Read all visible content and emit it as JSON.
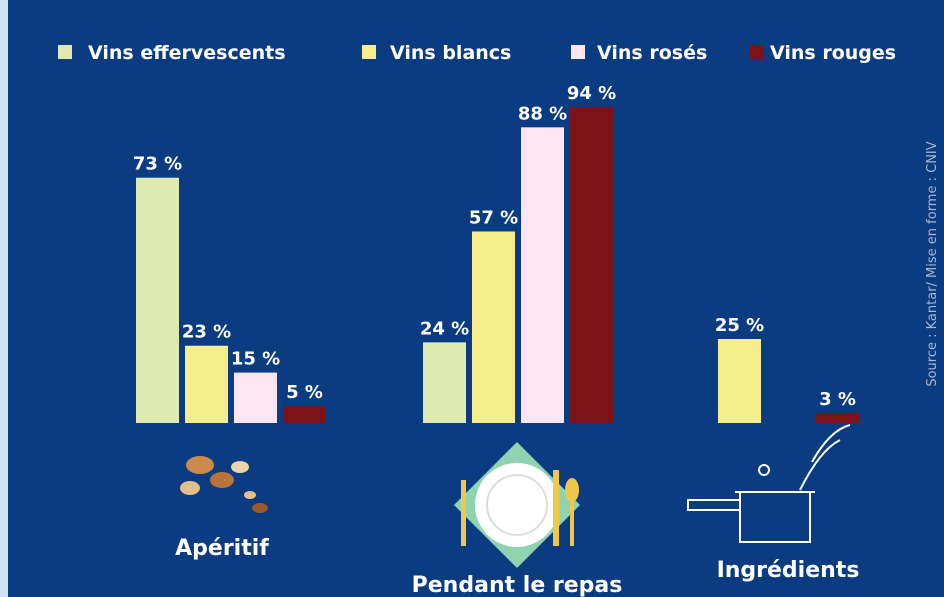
{
  "chart_data": {
    "type": "bar",
    "categories": [
      "Apéritif",
      "Pendant le repas",
      "Ingrédients"
    ],
    "series": [
      {
        "name": "Vins effervescents",
        "color": "#dfe9b2",
        "values": [
          73,
          24,
          null
        ],
        "value_labels": [
          "73 %",
          "24 %",
          null
        ]
      },
      {
        "name": "Vins blancs",
        "color": "#f6ec8c",
        "values": [
          23,
          57,
          25
        ],
        "value_labels": [
          "23 %",
          "57 %",
          "25 %"
        ]
      },
      {
        "name": "Vins rosés",
        "color": "#fde5f2",
        "values": [
          15,
          88,
          null
        ],
        "value_labels": [
          "15 %",
          "88 %",
          null
        ]
      },
      {
        "name": "Vins rouges",
        "color": "#7c1318",
        "values": [
          5,
          94,
          3
        ],
        "value_labels": [
          "5 %",
          "94 %",
          "3 %"
        ]
      }
    ],
    "source": "Source : Kantar/ Mise en forme : CNIV"
  }
}
